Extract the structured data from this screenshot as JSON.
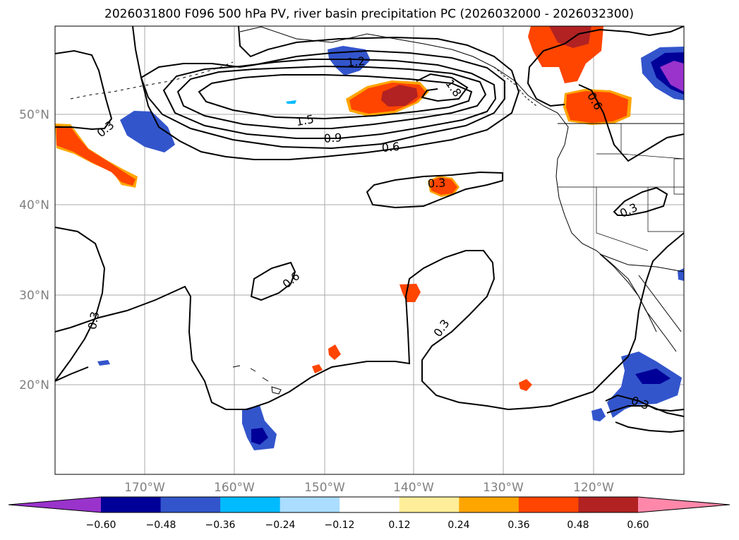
{
  "title": "2026031800 F096 500 hPa PV, river basin precipitation PC (2026032000 - 2026032300)",
  "map": {
    "lat_ticks": [
      "50°N",
      "40°N",
      "30°N",
      "20°N"
    ],
    "lon_ticks": [
      "170°W",
      "160°W",
      "150°W",
      "140°W",
      "130°W",
      "120°W"
    ],
    "contour_labels": [
      "1.2",
      "1.8",
      "0.6",
      "1.5",
      "0.9",
      "0.6",
      "0.3",
      "0.3",
      "0.3",
      "0.6",
      "0.3",
      "0.3",
      "0.3"
    ]
  },
  "colorbar": {
    "colors": [
      "#9933cc",
      "#000099",
      "#3355cc",
      "#00bbff",
      "#aaddff",
      "#ffffff",
      "#ffee99",
      "#ffa500",
      "#ff4500",
      "#b22222",
      "#ff88aa"
    ],
    "tick_labels": [
      "−0.60",
      "−0.48",
      "−0.36",
      "−0.24",
      "−0.12",
      "0.12",
      "0.24",
      "0.36",
      "0.48",
      "0.60"
    ]
  },
  "palette": {
    "contour": "#000000",
    "grid": "#aaaaaa",
    "tick_text": "#808080"
  }
}
